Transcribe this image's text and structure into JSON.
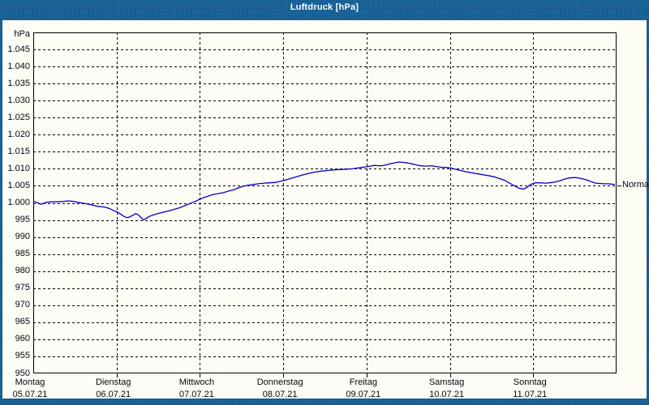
{
  "window": {
    "title": "Luftdruck [hPa]"
  },
  "colors": {
    "frame_blue": "#1e6da5",
    "line_blue": "#0000c8",
    "plot_background": "#fdfdf6",
    "grid_black": "#000000",
    "title_text": "#ffffff",
    "axis_text": "#05050f"
  },
  "chart_data": {
    "type": "line",
    "title": "Luftdruck [hPa]",
    "unit_label": "hPa",
    "ylabel": "hPa",
    "xlabel": "",
    "ylim": [
      950,
      1050
    ],
    "x_range_days": [
      0,
      7
    ],
    "grid": "dashed",
    "legend_position": "none",
    "normal_marker": {
      "label": "Normal",
      "value": 1005.2
    },
    "y_ticks": [
      {
        "value": 1045,
        "label": "1.045"
      },
      {
        "value": 1040,
        "label": "1.040"
      },
      {
        "value": 1035,
        "label": "1.035"
      },
      {
        "value": 1030,
        "label": "1.030"
      },
      {
        "value": 1025,
        "label": "1.025"
      },
      {
        "value": 1020,
        "label": "1.020"
      },
      {
        "value": 1015,
        "label": "1.015"
      },
      {
        "value": 1010,
        "label": "1.010"
      },
      {
        "value": 1005,
        "label": "1.005"
      },
      {
        "value": 1000,
        "label": "1.000"
      },
      {
        "value": 995,
        "label": "995"
      },
      {
        "value": 990,
        "label": "990"
      },
      {
        "value": 985,
        "label": "985"
      },
      {
        "value": 980,
        "label": "980"
      },
      {
        "value": 975,
        "label": "975"
      },
      {
        "value": 970,
        "label": "970"
      },
      {
        "value": 965,
        "label": "965"
      },
      {
        "value": 960,
        "label": "960"
      },
      {
        "value": 955,
        "label": "955"
      },
      {
        "value": 950,
        "label": "950"
      }
    ],
    "x_categories": [
      {
        "day": "Montag",
        "date": "05.07.21"
      },
      {
        "day": "Dienstag",
        "date": "06.07.21"
      },
      {
        "day": "Mittwoch",
        "date": "07.07.21"
      },
      {
        "day": "Donnerstag",
        "date": "08.07.21"
      },
      {
        "day": "Freitag",
        "date": "09.07.21"
      },
      {
        "day": "Samstag",
        "date": "10.07.21"
      },
      {
        "day": "Sonntag",
        "date": "11.07.21"
      }
    ],
    "series": [
      {
        "name": "Luftdruck",
        "color": "#0000c8",
        "points": [
          [
            0.0,
            1000.4
          ],
          [
            0.05,
            1000.1
          ],
          [
            0.09,
            999.6
          ],
          [
            0.13,
            999.9
          ],
          [
            0.16,
            1000.2
          ],
          [
            0.22,
            1000.3
          ],
          [
            0.28,
            1000.3
          ],
          [
            0.35,
            1000.4
          ],
          [
            0.43,
            1000.6
          ],
          [
            0.49,
            1000.4
          ],
          [
            0.53,
            1000.2
          ],
          [
            0.6,
            999.9
          ],
          [
            0.67,
            999.6
          ],
          [
            0.72,
            999.3
          ],
          [
            0.77,
            999.0
          ],
          [
            0.82,
            998.9
          ],
          [
            0.87,
            998.7
          ],
          [
            0.92,
            998.3
          ],
          [
            0.96,
            997.8
          ],
          [
            1.0,
            997.4
          ],
          [
            1.03,
            997.0
          ],
          [
            1.06,
            996.5
          ],
          [
            1.09,
            996.0
          ],
          [
            1.12,
            995.7
          ],
          [
            1.15,
            995.8
          ],
          [
            1.19,
            996.3
          ],
          [
            1.23,
            996.9
          ],
          [
            1.26,
            996.5
          ],
          [
            1.29,
            995.8
          ],
          [
            1.32,
            995.0
          ],
          [
            1.36,
            995.5
          ],
          [
            1.39,
            996.0
          ],
          [
            1.43,
            996.4
          ],
          [
            1.47,
            996.7
          ],
          [
            1.53,
            997.1
          ],
          [
            1.6,
            997.5
          ],
          [
            1.65,
            997.8
          ],
          [
            1.69,
            998.1
          ],
          [
            1.76,
            998.6
          ],
          [
            1.82,
            999.2
          ],
          [
            1.88,
            999.8
          ],
          [
            1.94,
            1000.4
          ],
          [
            2.0,
            1001.1
          ],
          [
            2.05,
            1001.6
          ],
          [
            2.1,
            1002.0
          ],
          [
            2.15,
            1002.4
          ],
          [
            2.21,
            1002.7
          ],
          [
            2.28,
            1003.0
          ],
          [
            2.35,
            1003.5
          ],
          [
            2.42,
            1004.0
          ],
          [
            2.47,
            1004.5
          ],
          [
            2.52,
            1004.9
          ],
          [
            2.58,
            1005.2
          ],
          [
            2.64,
            1005.4
          ],
          [
            2.7,
            1005.6
          ],
          [
            2.77,
            1005.8
          ],
          [
            2.84,
            1005.9
          ],
          [
            2.91,
            1006.0
          ],
          [
            2.96,
            1006.3
          ],
          [
            3.01,
            1006.6
          ],
          [
            3.08,
            1007.1
          ],
          [
            3.15,
            1007.6
          ],
          [
            3.22,
            1008.1
          ],
          [
            3.3,
            1008.6
          ],
          [
            3.37,
            1009.0
          ],
          [
            3.45,
            1009.3
          ],
          [
            3.53,
            1009.5
          ],
          [
            3.61,
            1009.7
          ],
          [
            3.69,
            1009.8
          ],
          [
            3.77,
            1009.9
          ],
          [
            3.83,
            1010.0
          ],
          [
            3.88,
            1010.2
          ],
          [
            3.94,
            1010.4
          ],
          [
            4.0,
            1010.6
          ],
          [
            4.05,
            1010.8
          ],
          [
            4.1,
            1011.0
          ],
          [
            4.14,
            1010.9
          ],
          [
            4.18,
            1010.9
          ],
          [
            4.23,
            1011.1
          ],
          [
            4.27,
            1011.4
          ],
          [
            4.33,
            1011.7
          ],
          [
            4.39,
            1012.0
          ],
          [
            4.43,
            1011.9
          ],
          [
            4.47,
            1011.8
          ],
          [
            4.52,
            1011.6
          ],
          [
            4.57,
            1011.3
          ],
          [
            4.62,
            1011.0
          ],
          [
            4.68,
            1010.8
          ],
          [
            4.73,
            1010.8
          ],
          [
            4.78,
            1010.9
          ],
          [
            4.85,
            1010.6
          ],
          [
            4.91,
            1010.4
          ],
          [
            4.95,
            1010.4
          ],
          [
            5.0,
            1010.3
          ],
          [
            5.06,
            1009.9
          ],
          [
            5.13,
            1009.5
          ],
          [
            5.2,
            1009.1
          ],
          [
            5.27,
            1008.8
          ],
          [
            5.34,
            1008.5
          ],
          [
            5.41,
            1008.2
          ],
          [
            5.48,
            1007.9
          ],
          [
            5.54,
            1007.6
          ],
          [
            5.6,
            1007.1
          ],
          [
            5.66,
            1006.6
          ],
          [
            5.71,
            1005.9
          ],
          [
            5.76,
            1005.2
          ],
          [
            5.8,
            1004.7
          ],
          [
            5.83,
            1004.3
          ],
          [
            5.87,
            1004.1
          ],
          [
            5.89,
            1004.1
          ],
          [
            5.93,
            1004.6
          ],
          [
            5.96,
            1005.3
          ],
          [
            6.0,
            1005.7
          ],
          [
            6.03,
            1005.9
          ],
          [
            6.08,
            1005.9
          ],
          [
            6.14,
            1005.8
          ],
          [
            6.2,
            1005.9
          ],
          [
            6.26,
            1006.1
          ],
          [
            6.32,
            1006.5
          ],
          [
            6.38,
            1007.0
          ],
          [
            6.43,
            1007.3
          ],
          [
            6.47,
            1007.4
          ],
          [
            6.52,
            1007.4
          ],
          [
            6.57,
            1007.2
          ],
          [
            6.62,
            1006.9
          ],
          [
            6.67,
            1006.5
          ],
          [
            6.71,
            1006.1
          ],
          [
            6.75,
            1005.8
          ],
          [
            6.8,
            1005.7
          ],
          [
            6.85,
            1005.6
          ],
          [
            6.9,
            1005.6
          ],
          [
            6.94,
            1005.5
          ],
          [
            6.98,
            1005.4
          ]
        ]
      }
    ]
  }
}
